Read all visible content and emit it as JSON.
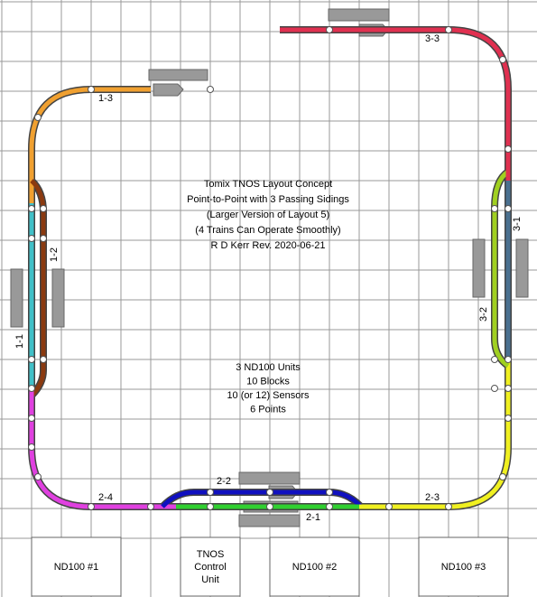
{
  "title_lines": [
    "Tomix TNOS Layout Concept",
    "Point-to-Point with 3 Passing Sidings",
    "(Larger Version of Layout 5)",
    "(4 Trains Can Operate Smoothly)",
    "R D Kerr  Rev. 2020-06-21"
  ],
  "notes": [
    "3 ND100 Units",
    "10 Blocks",
    "10 (or 12) Sensors",
    "6 Points"
  ],
  "track_labels": [
    "1-3",
    "1-1",
    "1-2",
    "2-4",
    "2-2",
    "2-1",
    "2-3",
    "3-1",
    "3-2",
    "3-3"
  ],
  "units": [
    {
      "lines": [
        "ND100 #1"
      ]
    },
    {
      "lines": [
        "TNOS",
        "Control",
        "Unit"
      ]
    },
    {
      "lines": [
        "ND100 #2"
      ]
    },
    {
      "lines": [
        "ND100 #3"
      ]
    }
  ]
}
